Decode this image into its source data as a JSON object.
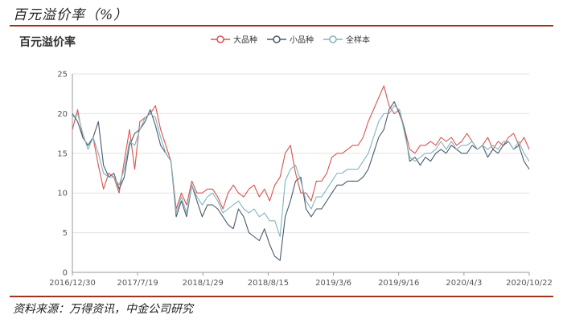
{
  "header": {
    "title": "百元溢价率（%）",
    "source": "资料来源：万得资讯，中金公司研究"
  },
  "chart_data": {
    "type": "line",
    "title": "百元溢价率",
    "xlabel": "",
    "ylabel": "",
    "ylim": [
      0,
      25
    ],
    "yticks": [
      0,
      5,
      10,
      15,
      20,
      25
    ],
    "grid": true,
    "legend_position": "top-right",
    "x_tick_labels": [
      "2016/12/30",
      "2017/7/19",
      "2018/1/29",
      "2018/8/15",
      "2019/3/6",
      "2019/9/16",
      "2020/4/3",
      "2020/10/22"
    ],
    "x": [
      0,
      0.1,
      0.2,
      0.3,
      0.4,
      0.5,
      0.6,
      0.7,
      0.8,
      0.9,
      1.0,
      1.1,
      1.2,
      1.3,
      1.4,
      1.5,
      1.6,
      1.7,
      1.8,
      1.9,
      2.0,
      2.1,
      2.2,
      2.3,
      2.4,
      2.5,
      2.6,
      2.7,
      2.8,
      2.9,
      3.0,
      3.1,
      3.2,
      3.3,
      3.4,
      3.5,
      3.6,
      3.7,
      3.8,
      3.9,
      4.0,
      4.1,
      4.2,
      4.3,
      4.4,
      4.5,
      4.6,
      4.7,
      4.8,
      4.9,
      5.0,
      5.1,
      5.2,
      5.3,
      5.4,
      5.5,
      5.6,
      5.7,
      5.8,
      5.9,
      6.0,
      6.1,
      6.2,
      6.3,
      6.4,
      6.5,
      6.6,
      6.7,
      6.8,
      6.9,
      7.0,
      7.1,
      7.2,
      7.3,
      7.4,
      7.5,
      7.6,
      7.7,
      7.8,
      7.9,
      8.0,
      8.1,
      8.2,
      8.3,
      8.4,
      8.5,
      8.6,
      8.7,
      8.8
    ],
    "series": [
      {
        "name": "大品种",
        "color": "#d9534f",
        "values": [
          18.0,
          20.5,
          17.0,
          16.0,
          17.0,
          13.5,
          10.5,
          12.5,
          12.0,
          10.0,
          14.0,
          18.0,
          13.0,
          19.0,
          19.5,
          20.0,
          21.0,
          18.0,
          16.0,
          14.0,
          8.0,
          10.0,
          8.5,
          11.5,
          10.0,
          10.0,
          10.5,
          10.5,
          9.5,
          8.0,
          10.0,
          11.0,
          10.0,
          9.5,
          10.5,
          11.0,
          9.5,
          10.5,
          9.0,
          11.0,
          12.0,
          15.0,
          16.0,
          12.5,
          10.0,
          10.0,
          9.0,
          11.5,
          11.5,
          12.5,
          14.5,
          15.0,
          15.0,
          15.5,
          16.0,
          16.0,
          17.0,
          19.0,
          20.5,
          22.0,
          23.5,
          21.0,
          20.0,
          20.5,
          18.0,
          15.5,
          15.0,
          16.0,
          16.0,
          16.5,
          16.0,
          17.0,
          16.5,
          17.0,
          16.0,
          16.5,
          17.5,
          16.5,
          15.5,
          16.0,
          17.0,
          15.5,
          16.5,
          16.0,
          17.0,
          17.5,
          16.0,
          17.0,
          15.5
        ]
      },
      {
        "name": "小品种",
        "color": "#4a5a6c",
        "values": [
          20.0,
          19.0,
          17.0,
          16.0,
          17.0,
          19.0,
          13.5,
          12.0,
          12.5,
          10.5,
          12.0,
          16.0,
          17.5,
          18.0,
          19.0,
          20.5,
          18.5,
          16.0,
          15.0,
          14.0,
          7.0,
          9.0,
          7.0,
          11.0,
          9.0,
          7.0,
          8.5,
          8.5,
          8.0,
          7.0,
          6.0,
          5.5,
          8.0,
          7.0,
          5.0,
          4.5,
          4.0,
          5.5,
          3.5,
          2.0,
          1.5,
          7.0,
          9.0,
          11.5,
          12.0,
          8.0,
          7.0,
          8.0,
          8.0,
          9.0,
          10.0,
          11.0,
          11.0,
          11.5,
          11.5,
          11.5,
          12.0,
          13.0,
          15.0,
          17.0,
          18.0,
          20.5,
          21.5,
          20.0,
          18.0,
          14.0,
          14.5,
          13.5,
          14.5,
          14.0,
          15.0,
          15.5,
          15.0,
          16.0,
          15.5,
          15.0,
          15.0,
          16.0,
          15.5,
          16.0,
          14.5,
          15.5,
          15.0,
          16.0,
          16.5,
          15.5,
          16.0,
          14.0,
          13.0
        ]
      },
      {
        "name": "全样本",
        "color": "#7fb5bd",
        "values": [
          19.5,
          20.0,
          17.5,
          15.5,
          17.0,
          15.0,
          12.5,
          12.0,
          12.0,
          11.0,
          13.0,
          16.5,
          16.0,
          18.0,
          19.5,
          20.0,
          19.5,
          17.0,
          15.0,
          14.0,
          7.5,
          9.5,
          7.5,
          11.0,
          9.5,
          8.5,
          9.5,
          10.0,
          9.0,
          7.5,
          8.0,
          8.5,
          9.0,
          8.0,
          7.5,
          8.0,
          7.0,
          7.5,
          6.5,
          6.5,
          4.5,
          11.5,
          13.0,
          13.5,
          11.5,
          9.0,
          8.0,
          9.5,
          9.5,
          10.5,
          11.5,
          12.5,
          12.5,
          13.0,
          13.0,
          13.0,
          14.0,
          15.0,
          17.0,
          19.0,
          20.0,
          20.0,
          21.0,
          20.5,
          17.5,
          14.5,
          14.0,
          14.5,
          15.0,
          15.0,
          15.5,
          16.5,
          15.5,
          16.5,
          15.5,
          16.0,
          16.0,
          16.5,
          15.5,
          16.0,
          15.5,
          16.0,
          15.5,
          16.5,
          16.5,
          15.5,
          16.5,
          15.0,
          14.0
        ]
      }
    ]
  }
}
